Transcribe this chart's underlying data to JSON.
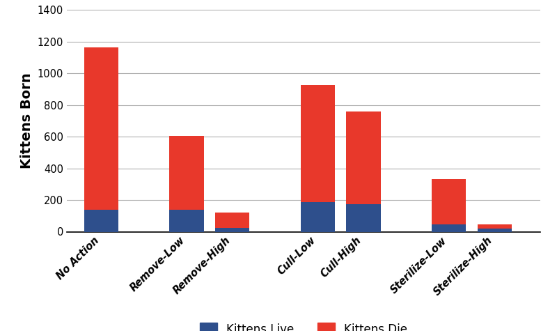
{
  "categories": [
    "No Action",
    "Remove-Low",
    "Remove-High",
    "Cull-Low",
    "Cull-High",
    "Sterilize-Low",
    "Sterilize-High"
  ],
  "kittens_live": [
    140,
    140,
    25,
    185,
    175,
    45,
    20
  ],
  "kittens_die": [
    1025,
    465,
    95,
    740,
    585,
    285,
    25
  ],
  "color_live": "#2e4f8c",
  "color_die": "#e8382b",
  "ylabel": "Kittens Born",
  "ylim": [
    0,
    1400
  ],
  "yticks": [
    0,
    200,
    400,
    600,
    800,
    1000,
    1200,
    1400
  ],
  "legend_live": "Kittens Live",
  "legend_die": "Kittens Die",
  "bar_width": 0.6,
  "positions": [
    0.5,
    2.0,
    2.8,
    4.3,
    5.1,
    6.6,
    7.4
  ],
  "background_color": "#ffffff",
  "grid_color": "#b0b0b0",
  "axis_fontsize": 14,
  "tick_fontsize": 10.5,
  "legend_fontsize": 12
}
